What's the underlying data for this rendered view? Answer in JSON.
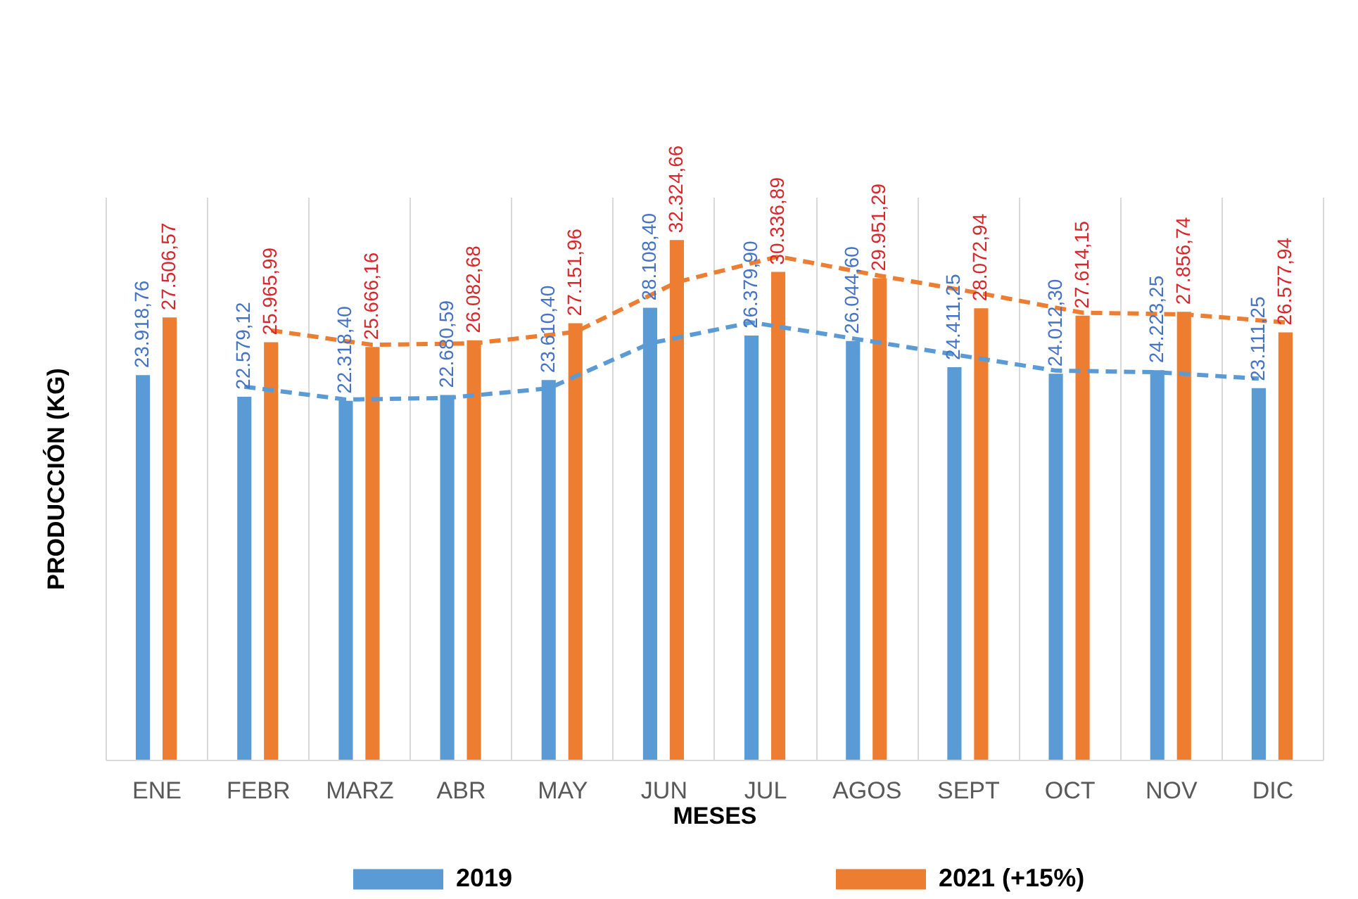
{
  "chart_data": {
    "type": "bar",
    "xlabel": "MESES",
    "ylabel": "PRODUCCIÓN (KG)",
    "categories": [
      "ENE",
      "FEBR",
      "MARZ",
      "ABR",
      "MAY",
      "JUN",
      "JUL",
      "AGOS",
      "SEPT",
      "OCT",
      "NOV",
      "DIC"
    ],
    "ylim": [
      0,
      35000
    ],
    "tick_labels": "x",
    "grid": "x",
    "legend": "bottom",
    "line_style": "dashed",
    "series": [
      {
        "name": "2019",
        "color": "#5b9bd5",
        "values": [
          23918.76,
          22579.12,
          22318.4,
          22680.59,
          23610.4,
          28108.4,
          26379.9,
          26044.6,
          24411.25,
          24012.3,
          24223.25,
          23111.25
        ],
        "value_labels": [
          "23.918,76",
          "22.579,12",
          "22.318,40",
          "22.680,59",
          "23.610,40",
          "28.108,40",
          "26.379,90",
          "26.044,60",
          "24.411,25",
          "24.012,30",
          "24.223,25",
          "23.111,25"
        ]
      },
      {
        "name": "2021 (+15%)",
        "color": "#ed7d31",
        "values": [
          27506.57,
          25965.99,
          25666.16,
          26082.68,
          27151.96,
          32324.66,
          30336.89,
          29951.29,
          28072.94,
          27614.15,
          27856.74,
          26577.94
        ],
        "value_labels": [
          "27.506,57",
          "25.965,99",
          "25.666,16",
          "26.082,68",
          "27.151,96",
          "32.324,66",
          "30.336,89",
          "29.951,29",
          "28.072,94",
          "27.614,15",
          "27.856,74",
          "26.577,94"
        ]
      },
      {
        "type": "line",
        "color": "#5b9bd5",
        "values": [
          null,
          23200,
          22400,
          22500,
          23100,
          25900,
          27200,
          26200,
          25200,
          24200,
          24100,
          23700
        ]
      },
      {
        "type": "line",
        "color": "#ed7d31",
        "values": [
          null,
          26700,
          25800,
          25900,
          26600,
          29700,
          31300,
          30100,
          29000,
          27800,
          27700,
          27200
        ]
      }
    ]
  }
}
